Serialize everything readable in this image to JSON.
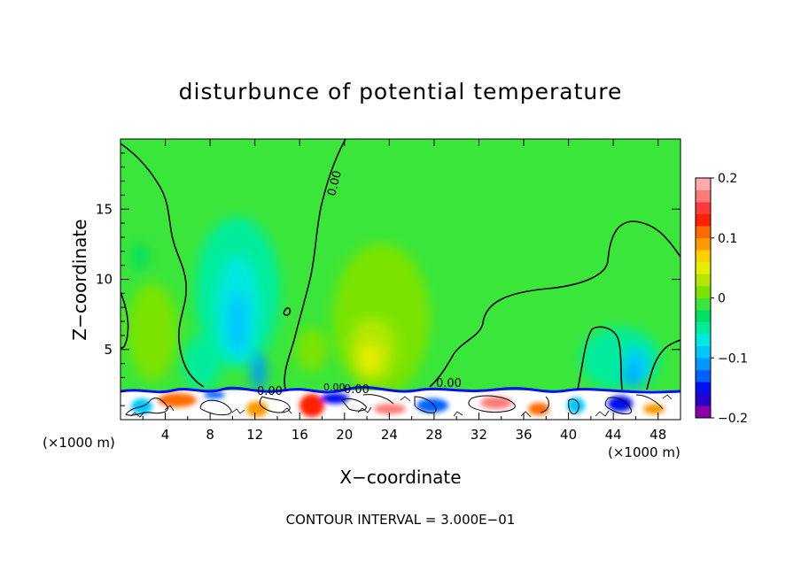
{
  "chart_data": {
    "type": "heatmap",
    "title": "disturbunce of potential temperature",
    "xlabel": "X−coordinate",
    "ylabel": "Z−coordinate",
    "x_unit_left": "(×1000 m)",
    "x_unit_right": "(×1000 m)",
    "xlim": [
      0,
      50
    ],
    "ylim": [
      0,
      20
    ],
    "x_ticks": [
      4,
      8,
      12,
      16,
      20,
      24,
      28,
      32,
      36,
      40,
      44,
      48
    ],
    "y_ticks": [
      5,
      10,
      15
    ],
    "colorbar": {
      "range": [
        -0.2,
        0.2
      ],
      "tick_values": [
        0.2,
        0.1,
        0,
        -0.1,
        -0.2
      ],
      "tick_labels": [
        "0.2",
        "0.1",
        "0",
        "−0.1",
        "−0.2"
      ],
      "colors": [
        "#8a00a8",
        "#2a00c8",
        "#0010f0",
        "#0060ff",
        "#0098ff",
        "#00c8ff",
        "#00e8e0",
        "#00ec9c",
        "#00e060",
        "#3ae63a",
        "#7ae400",
        "#b4e800",
        "#e6ee00",
        "#ffd000",
        "#ff9a00",
        "#ff6a00",
        "#ff2000",
        "#ff3a3a",
        "#ff7a7a",
        "#ffaaaa"
      ]
    },
    "contour_labels": [
      "0.00",
      "0.00",
      "0.00",
      "0.00",
      "0.00"
    ],
    "grid": false,
    "legend": "colorbar right"
  },
  "footer": {
    "contour_interval": "CONTOUR INTERVAL = 3.000E−01"
  }
}
